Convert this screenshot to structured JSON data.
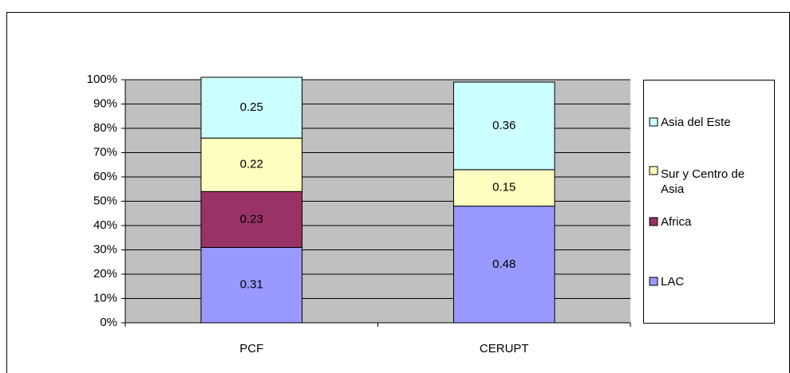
{
  "chart_data": {
    "type": "stacked_bar",
    "categories": [
      "PCF",
      "CERUPT"
    ],
    "series": [
      {
        "name": "LAC",
        "color": "#9999ff",
        "values": [
          0.31,
          0.48
        ]
      },
      {
        "name": "Africa",
        "color": "#993366",
        "values": [
          0.23,
          null
        ]
      },
      {
        "name": "Sur y Centro de Asia",
        "color": "#ffffc0",
        "values": [
          0.22,
          0.15
        ]
      },
      {
        "name": "Asia del Este",
        "color": "#ccffff",
        "values": [
          0.25,
          0.36
        ]
      }
    ],
    "ylim": [
      0,
      1
    ],
    "yticks": [
      {
        "value": 0,
        "label": "0%"
      },
      {
        "value": 0.1,
        "label": "10%"
      },
      {
        "value": 0.2,
        "label": "20%"
      },
      {
        "value": 0.3,
        "label": "30%"
      },
      {
        "value": 0.4,
        "label": "40%"
      },
      {
        "value": 0.5,
        "label": "50%"
      },
      {
        "value": 0.6,
        "label": "60%"
      },
      {
        "value": 0.7,
        "label": "70%"
      },
      {
        "value": 0.8,
        "label": "80%"
      },
      {
        "value": 0.9,
        "label": "90%"
      },
      {
        "value": 1,
        "label": "100%"
      }
    ],
    "grid": true,
    "plot_background": "#c0c0c0",
    "legend": "right"
  }
}
